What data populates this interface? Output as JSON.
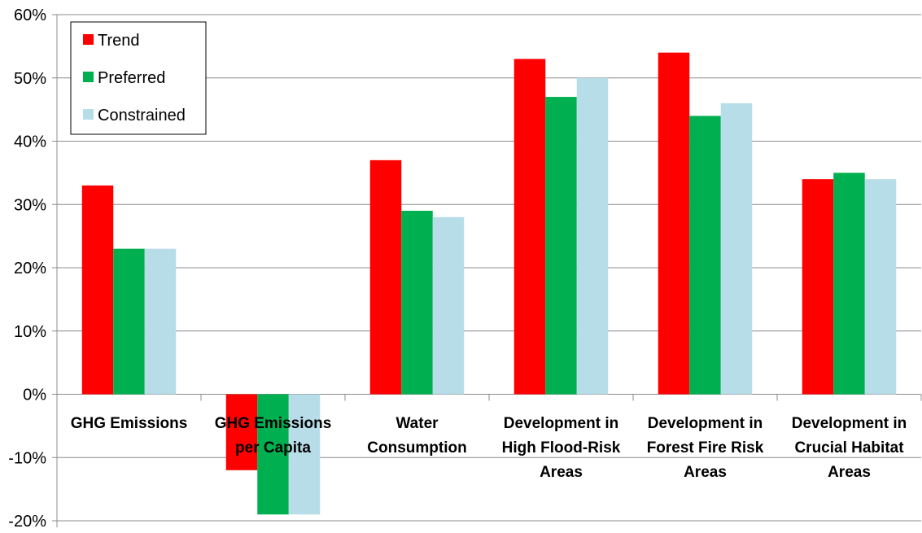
{
  "chart_data": {
    "type": "bar",
    "title": "",
    "xlabel": "",
    "ylabel": "",
    "ylim": [
      -20,
      60
    ],
    "y_ticks": [
      "-20%",
      "-10%",
      "0%",
      "10%",
      "20%",
      "30%",
      "40%",
      "50%",
      "60%"
    ],
    "y_tick_values": [
      -20,
      -10,
      0,
      10,
      20,
      30,
      40,
      50,
      60
    ],
    "grid": true,
    "legend_position": "top-left",
    "categories": [
      [
        "GHG Emissions"
      ],
      [
        "GHG Emissions",
        "per Capita"
      ],
      [
        "Water",
        "Consumption"
      ],
      [
        "Development in",
        "High Flood-Risk",
        "Areas"
      ],
      [
        "Development in",
        "Forest Fire Risk",
        "Areas"
      ],
      [
        "Development in",
        "Crucial Habitat",
        "Areas"
      ]
    ],
    "series": [
      {
        "name": "Trend",
        "color": "#ff0000",
        "values": [
          33,
          -12,
          37,
          53,
          54,
          34
        ]
      },
      {
        "name": "Preferred",
        "color": "#00b050",
        "values": [
          23,
          -19,
          29,
          47,
          44,
          35
        ]
      },
      {
        "name": "Constrained",
        "color": "#b7dde8",
        "values": [
          23,
          -19,
          28,
          50,
          46,
          34
        ]
      }
    ]
  }
}
